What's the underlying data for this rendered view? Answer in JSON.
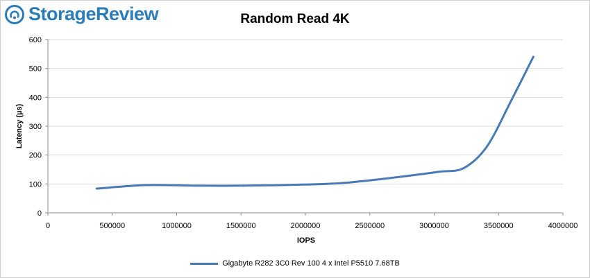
{
  "brand": {
    "name": "StorageReview"
  },
  "chart_data": {
    "type": "line",
    "title": "Random Read 4K",
    "xlabel": "IOPS",
    "ylabel": "Latency (µs)",
    "xlim": [
      0,
      4000000
    ],
    "ylim": [
      0,
      600
    ],
    "xticks": [
      0,
      500000,
      1000000,
      1500000,
      2000000,
      2500000,
      3000000,
      3500000,
      4000000
    ],
    "yticks": [
      0,
      100,
      200,
      300,
      400,
      500,
      600
    ],
    "grid": "horizontal",
    "legend_position": "bottom",
    "series": [
      {
        "name": "Gigabyte R282 3C0 Rev 100 4 x Intel P5510 7.68TB",
        "color": "#4a7ab5",
        "points": [
          [
            380000,
            84
          ],
          [
            760000,
            96
          ],
          [
            1150000,
            94
          ],
          [
            1520000,
            94
          ],
          [
            1900000,
            97
          ],
          [
            2280000,
            103
          ],
          [
            2650000,
            120
          ],
          [
            2920000,
            135
          ],
          [
            3050000,
            143
          ],
          [
            3230000,
            155
          ],
          [
            3410000,
            230
          ],
          [
            3600000,
            390
          ],
          [
            3770000,
            540
          ]
        ]
      }
    ]
  }
}
